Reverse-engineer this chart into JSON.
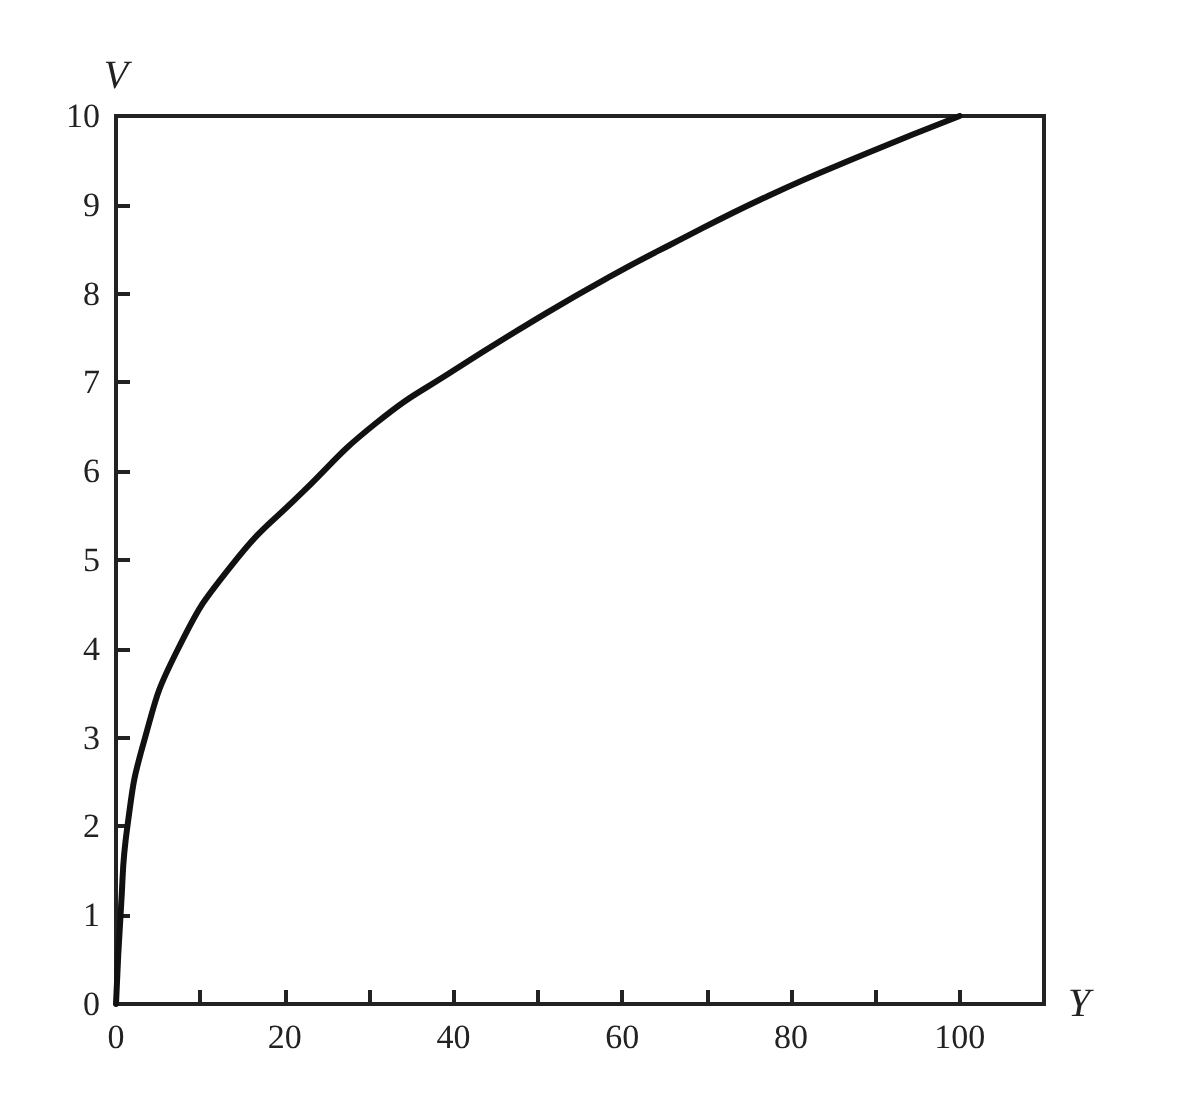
{
  "chart_data": {
    "type": "line",
    "xlabel": "Y",
    "ylabel": "V",
    "x": [
      0,
      0.6,
      1.35,
      3.3,
      7.2,
      13.8,
      22.3,
      30.8,
      40.1,
      51,
      58.7,
      65.7,
      77.3,
      89,
      100
    ],
    "series": [
      {
        "color": "#111111",
        "values": [
          0,
          1.1,
          2.0,
          2.95,
          3.97,
          4.95,
          5.78,
          6.54,
          7.14,
          7.78,
          8.2,
          8.55,
          9.1,
          9.58,
          10
        ]
      }
    ],
    "xlim": [
      0,
      110
    ],
    "ylim": [
      0,
      10
    ],
    "xticks": [
      0,
      {
        "value": 10,
        "label": null
      },
      20,
      {
        "value": 30,
        "label": null
      },
      40,
      {
        "value": 50,
        "label": null
      },
      60,
      {
        "value": 70,
        "label": null
      },
      80,
      {
        "value": 90,
        "label": null
      },
      100
    ],
    "yticks": [
      0,
      1,
      2,
      3,
      4,
      5,
      6,
      7,
      8,
      9,
      10
    ],
    "grid": false,
    "marker": "none",
    "line_style": "solid"
  }
}
